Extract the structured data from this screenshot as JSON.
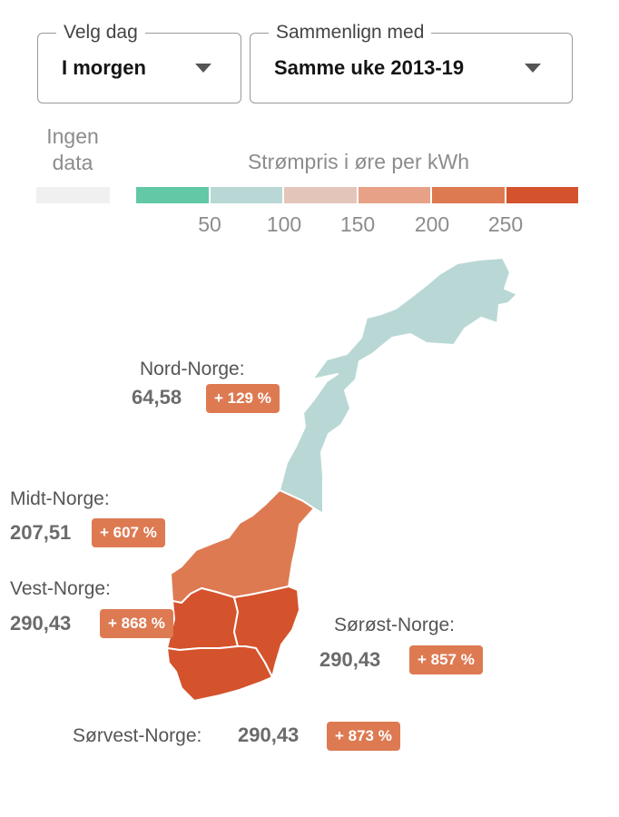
{
  "controls": {
    "day": {
      "legend": "Velg dag",
      "value": "I morgen"
    },
    "compare": {
      "legend": "Sammenlign med",
      "value": "Samme uke 2013-19"
    }
  },
  "legend": {
    "no_data_label": "Ingen data",
    "no_data_color": "#f0f0f0",
    "title": "Strømpris i øre per kWh",
    "colors": [
      "#62c8a6",
      "#b9d8d5",
      "#e4c5ba",
      "#e6a186",
      "#dd7a52",
      "#d4522c"
    ],
    "ticks": [
      "50",
      "100",
      "150",
      "200",
      "250"
    ]
  },
  "regions": {
    "nord": {
      "name": "Nord-Norge:",
      "price": "64,58",
      "change": "+ 129 %",
      "fill": "#b9d8d5",
      "badge_color": "#dd7a52"
    },
    "midt": {
      "name": "Midt-Norge:",
      "price": "207,51",
      "change": "+ 607 %",
      "fill": "#dd7a52",
      "badge_color": "#dd7a52"
    },
    "vest": {
      "name": "Vest-Norge:",
      "price": "290,43",
      "change": "+ 868 %",
      "fill": "#d4522c",
      "badge_color": "#dd7a52"
    },
    "sorost": {
      "name": "Sørøst-Norge:",
      "price": "290,43",
      "change": "+ 857 %",
      "fill": "#d4522c",
      "badge_color": "#dd7a52"
    },
    "sorvest": {
      "name": "Sørvest-Norge:",
      "price": "290,43",
      "change": "+ 873 %",
      "fill": "#d4522c",
      "badge_color": "#dd7a52"
    }
  }
}
